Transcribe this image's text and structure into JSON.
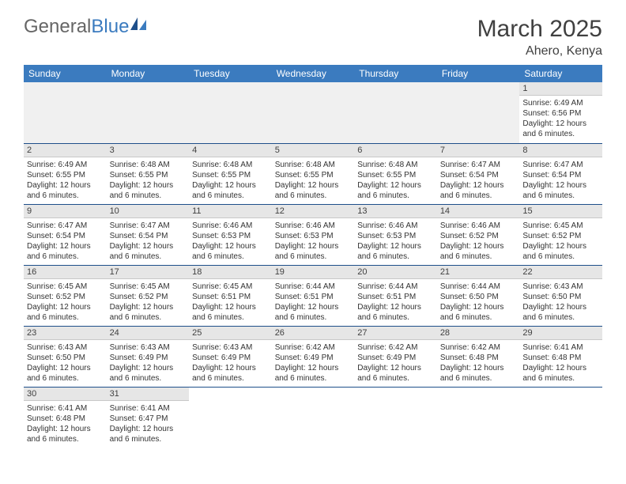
{
  "logo": {
    "part1": "General",
    "part2": "Blue"
  },
  "title": "March 2025",
  "location": "Ahero, Kenya",
  "colors": {
    "header_bg": "#3b7bbf",
    "header_text": "#ffffff",
    "daynum_bg": "#e6e6e6",
    "row_border": "#1e4f8a",
    "logo_gray": "#666666",
    "logo_blue": "#3b7bbf"
  },
  "weekdays": [
    "Sunday",
    "Monday",
    "Tuesday",
    "Wednesday",
    "Thursday",
    "Friday",
    "Saturday"
  ],
  "days": {
    "1": {
      "sunrise": "6:49 AM",
      "sunset": "6:56 PM",
      "daylight": "12 hours and 6 minutes."
    },
    "2": {
      "sunrise": "6:49 AM",
      "sunset": "6:55 PM",
      "daylight": "12 hours and 6 minutes."
    },
    "3": {
      "sunrise": "6:48 AM",
      "sunset": "6:55 PM",
      "daylight": "12 hours and 6 minutes."
    },
    "4": {
      "sunrise": "6:48 AM",
      "sunset": "6:55 PM",
      "daylight": "12 hours and 6 minutes."
    },
    "5": {
      "sunrise": "6:48 AM",
      "sunset": "6:55 PM",
      "daylight": "12 hours and 6 minutes."
    },
    "6": {
      "sunrise": "6:48 AM",
      "sunset": "6:55 PM",
      "daylight": "12 hours and 6 minutes."
    },
    "7": {
      "sunrise": "6:47 AM",
      "sunset": "6:54 PM",
      "daylight": "12 hours and 6 minutes."
    },
    "8": {
      "sunrise": "6:47 AM",
      "sunset": "6:54 PM",
      "daylight": "12 hours and 6 minutes."
    },
    "9": {
      "sunrise": "6:47 AM",
      "sunset": "6:54 PM",
      "daylight": "12 hours and 6 minutes."
    },
    "10": {
      "sunrise": "6:47 AM",
      "sunset": "6:54 PM",
      "daylight": "12 hours and 6 minutes."
    },
    "11": {
      "sunrise": "6:46 AM",
      "sunset": "6:53 PM",
      "daylight": "12 hours and 6 minutes."
    },
    "12": {
      "sunrise": "6:46 AM",
      "sunset": "6:53 PM",
      "daylight": "12 hours and 6 minutes."
    },
    "13": {
      "sunrise": "6:46 AM",
      "sunset": "6:53 PM",
      "daylight": "12 hours and 6 minutes."
    },
    "14": {
      "sunrise": "6:46 AM",
      "sunset": "6:52 PM",
      "daylight": "12 hours and 6 minutes."
    },
    "15": {
      "sunrise": "6:45 AM",
      "sunset": "6:52 PM",
      "daylight": "12 hours and 6 minutes."
    },
    "16": {
      "sunrise": "6:45 AM",
      "sunset": "6:52 PM",
      "daylight": "12 hours and 6 minutes."
    },
    "17": {
      "sunrise": "6:45 AM",
      "sunset": "6:52 PM",
      "daylight": "12 hours and 6 minutes."
    },
    "18": {
      "sunrise": "6:45 AM",
      "sunset": "6:51 PM",
      "daylight": "12 hours and 6 minutes."
    },
    "19": {
      "sunrise": "6:44 AM",
      "sunset": "6:51 PM",
      "daylight": "12 hours and 6 minutes."
    },
    "20": {
      "sunrise": "6:44 AM",
      "sunset": "6:51 PM",
      "daylight": "12 hours and 6 minutes."
    },
    "21": {
      "sunrise": "6:44 AM",
      "sunset": "6:50 PM",
      "daylight": "12 hours and 6 minutes."
    },
    "22": {
      "sunrise": "6:43 AM",
      "sunset": "6:50 PM",
      "daylight": "12 hours and 6 minutes."
    },
    "23": {
      "sunrise": "6:43 AM",
      "sunset": "6:50 PM",
      "daylight": "12 hours and 6 minutes."
    },
    "24": {
      "sunrise": "6:43 AM",
      "sunset": "6:49 PM",
      "daylight": "12 hours and 6 minutes."
    },
    "25": {
      "sunrise": "6:43 AM",
      "sunset": "6:49 PM",
      "daylight": "12 hours and 6 minutes."
    },
    "26": {
      "sunrise": "6:42 AM",
      "sunset": "6:49 PM",
      "daylight": "12 hours and 6 minutes."
    },
    "27": {
      "sunrise": "6:42 AM",
      "sunset": "6:49 PM",
      "daylight": "12 hours and 6 minutes."
    },
    "28": {
      "sunrise": "6:42 AM",
      "sunset": "6:48 PM",
      "daylight": "12 hours and 6 minutes."
    },
    "29": {
      "sunrise": "6:41 AM",
      "sunset": "6:48 PM",
      "daylight": "12 hours and 6 minutes."
    },
    "30": {
      "sunrise": "6:41 AM",
      "sunset": "6:48 PM",
      "daylight": "12 hours and 6 minutes."
    },
    "31": {
      "sunrise": "6:41 AM",
      "sunset": "6:47 PM",
      "daylight": "12 hours and 6 minutes."
    }
  },
  "labels": {
    "sunrise": "Sunrise:",
    "sunset": "Sunset:",
    "daylight": "Daylight:"
  },
  "grid": [
    [
      0,
      0,
      0,
      0,
      0,
      0,
      1
    ],
    [
      2,
      3,
      4,
      5,
      6,
      7,
      8
    ],
    [
      9,
      10,
      11,
      12,
      13,
      14,
      15
    ],
    [
      16,
      17,
      18,
      19,
      20,
      21,
      22
    ],
    [
      23,
      24,
      25,
      26,
      27,
      28,
      29
    ],
    [
      30,
      31,
      0,
      0,
      0,
      0,
      0
    ]
  ]
}
